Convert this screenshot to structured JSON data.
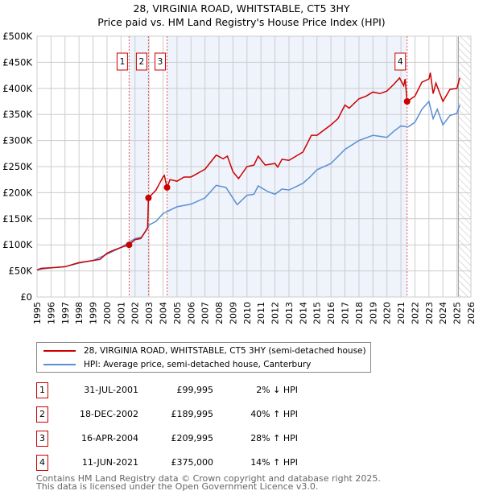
{
  "title": "28, VIRGINIA ROAD, WHITSTABLE, CT5 3HY",
  "subtitle": "Price paid vs. HM Land Registry's House Price Index (HPI)",
  "chart_data": {
    "type": "line",
    "title": "28, VIRGINIA ROAD, WHITSTABLE, CT5 3HY",
    "subtitle": "Price paid vs. HM Land Registry's House Price Index (HPI)",
    "xlim": [
      1995,
      2026
    ],
    "ylim": [
      0,
      500000
    ],
    "x_ticks": [
      "1995",
      "1996",
      "1997",
      "1998",
      "1999",
      "2000",
      "2001",
      "2002",
      "2003",
      "2004",
      "2005",
      "2006",
      "2007",
      "2008",
      "2009",
      "2010",
      "2011",
      "2012",
      "2013",
      "2014",
      "2015",
      "2016",
      "2017",
      "2018",
      "2019",
      "2020",
      "2021",
      "2022",
      "2023",
      "2024",
      "2025",
      "2026"
    ],
    "y_ticks": [
      {
        "v": 0,
        "l": "£0"
      },
      {
        "v": 50000,
        "l": "£50K"
      },
      {
        "v": 100000,
        "l": "£100K"
      },
      {
        "v": 150000,
        "l": "£150K"
      },
      {
        "v": 200000,
        "l": "£200K"
      },
      {
        "v": 250000,
        "l": "£250K"
      },
      {
        "v": 300000,
        "l": "£300K"
      },
      {
        "v": 350000,
        "l": "£350K"
      },
      {
        "v": 400000,
        "l": "£400K"
      },
      {
        "v": 450000,
        "l": "£450K"
      },
      {
        "v": 500000,
        "l": "£500K"
      }
    ],
    "grid": true,
    "shaded_ranges": [
      [
        2001.58,
        2002.96
      ],
      [
        2004.29,
        2021.44
      ]
    ],
    "forecast_from": 2025.1,
    "series": [
      {
        "name": "28, VIRGINIA ROAD, WHITSTABLE, CT5 3HY (semi-detached house)",
        "color": "#cc0000",
        "points": [
          [
            1995,
            52000
          ],
          [
            1995.3,
            55000
          ],
          [
            1996,
            56000
          ],
          [
            1997,
            58000
          ],
          [
            1997.5,
            62000
          ],
          [
            1998,
            66000
          ],
          [
            1998.5,
            68000
          ],
          [
            1999,
            70000
          ],
          [
            1999.5,
            72000
          ],
          [
            2000,
            84000
          ],
          [
            2000.5,
            90000
          ],
          [
            2001,
            95000
          ],
          [
            2001.58,
            99995
          ],
          [
            2002,
            110000
          ],
          [
            2002.4,
            112000
          ],
          [
            2002.9,
            132000
          ],
          [
            2002.96,
            189995
          ],
          [
            2003.5,
            205000
          ],
          [
            2003.8,
            220000
          ],
          [
            2004,
            230000
          ],
          [
            2004.1,
            233000
          ],
          [
            2004.2,
            220000
          ],
          [
            2004.29,
            209995
          ],
          [
            2004.5,
            225000
          ],
          [
            2005,
            222000
          ],
          [
            2005.5,
            230000
          ],
          [
            2006,
            230000
          ],
          [
            2007,
            245000
          ],
          [
            2007.8,
            272000
          ],
          [
            2008.3,
            265000
          ],
          [
            2008.6,
            270000
          ],
          [
            2009,
            240000
          ],
          [
            2009.4,
            227000
          ],
          [
            2010,
            250000
          ],
          [
            2010.5,
            253000
          ],
          [
            2010.8,
            270000
          ],
          [
            2011.3,
            253000
          ],
          [
            2012,
            256000
          ],
          [
            2012.2,
            249000
          ],
          [
            2012.5,
            264000
          ],
          [
            2013,
            262000
          ],
          [
            2014,
            278000
          ],
          [
            2014.6,
            310000
          ],
          [
            2015,
            310000
          ],
          [
            2016,
            330000
          ],
          [
            2016.5,
            342000
          ],
          [
            2017,
            368000
          ],
          [
            2017.3,
            362000
          ],
          [
            2018,
            380000
          ],
          [
            2018.5,
            385000
          ],
          [
            2019,
            393000
          ],
          [
            2019.5,
            390000
          ],
          [
            2020,
            395000
          ],
          [
            2020.5,
            408000
          ],
          [
            2020.9,
            420000
          ],
          [
            2021.2,
            405000
          ],
          [
            2021.3,
            418000
          ],
          [
            2021.44,
            375000
          ],
          [
            2022,
            385000
          ],
          [
            2022.5,
            412000
          ],
          [
            2023,
            418000
          ],
          [
            2023.1,
            430000
          ],
          [
            2023.3,
            390000
          ],
          [
            2023.5,
            410000
          ],
          [
            2024,
            375000
          ],
          [
            2024.5,
            398000
          ],
          [
            2025,
            400000
          ],
          [
            2025.2,
            420000
          ]
        ]
      },
      {
        "name": "HPI: Average price, semi-detached house, Canterbury",
        "color": "#5b8fd4",
        "points": [
          [
            1995,
            52000
          ],
          [
            1996,
            56000
          ],
          [
            1997,
            58000
          ],
          [
            1998,
            65000
          ],
          [
            1999,
            70000
          ],
          [
            2000,
            82000
          ],
          [
            2001,
            95000
          ],
          [
            2002,
            112000
          ],
          [
            2002.5,
            115000
          ],
          [
            2003,
            138000
          ],
          [
            2003.5,
            145000
          ],
          [
            2004,
            160000
          ],
          [
            2005,
            173000
          ],
          [
            2006,
            178000
          ],
          [
            2007,
            190000
          ],
          [
            2007.8,
            214000
          ],
          [
            2008.5,
            210000
          ],
          [
            2009.3,
            177000
          ],
          [
            2010,
            195000
          ],
          [
            2010.5,
            197000
          ],
          [
            2010.8,
            213000
          ],
          [
            2011.5,
            202000
          ],
          [
            2012,
            197000
          ],
          [
            2012.5,
            207000
          ],
          [
            2013,
            205000
          ],
          [
            2014,
            218000
          ],
          [
            2014.5,
            230000
          ],
          [
            2015,
            244000
          ],
          [
            2016,
            256000
          ],
          [
            2017,
            283000
          ],
          [
            2018,
            300000
          ],
          [
            2019,
            310000
          ],
          [
            2020,
            306000
          ],
          [
            2020.5,
            318000
          ],
          [
            2021,
            328000
          ],
          [
            2021.5,
            326000
          ],
          [
            2022,
            335000
          ],
          [
            2022.5,
            360000
          ],
          [
            2023,
            375000
          ],
          [
            2023.3,
            342000
          ],
          [
            2023.6,
            360000
          ],
          [
            2024,
            330000
          ],
          [
            2024.5,
            348000
          ],
          [
            2025,
            352000
          ],
          [
            2025.2,
            368000
          ]
        ]
      }
    ],
    "sales": [
      {
        "label": "1",
        "x": 2001.58,
        "y": 99995
      },
      {
        "label": "2",
        "x": 2002.96,
        "y": 189995
      },
      {
        "label": "3",
        "x": 2004.29,
        "y": 209995
      },
      {
        "label": "4",
        "x": 2021.44,
        "y": 375000
      }
    ]
  },
  "legend": {
    "property": "28, VIRGINIA ROAD, WHITSTABLE, CT5 3HY (semi-detached house)",
    "hpi": "HPI: Average price, semi-detached house, Canterbury"
  },
  "transactions": [
    {
      "n": "1",
      "date": "31-JUL-2001",
      "price": "£99,995",
      "hpi": "2% ↓ HPI"
    },
    {
      "n": "2",
      "date": "18-DEC-2002",
      "price": "£189,995",
      "hpi": "40% ↑ HPI"
    },
    {
      "n": "3",
      "date": "16-APR-2004",
      "price": "£209,995",
      "hpi": "28% ↑ HPI"
    },
    {
      "n": "4",
      "date": "11-JUN-2021",
      "price": "£375,000",
      "hpi": "14% ↑ HPI"
    }
  ],
  "footer": [
    "Contains HM Land Registry data © Crown copyright and database right 2025.",
    "This data is licensed under the Open Government Licence v3.0."
  ]
}
